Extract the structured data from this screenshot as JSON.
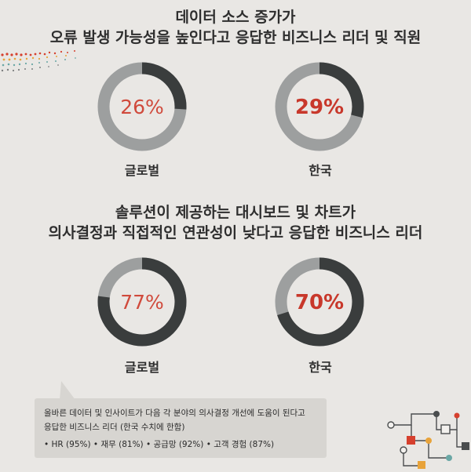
{
  "colors": {
    "ring_track": "#9d9f9f",
    "ring_value": "#3a3d3d",
    "pct_light": "#d04a3c",
    "pct_bold": "#c8382b",
    "background": "#e9e7e4"
  },
  "chart_data": [
    {
      "type": "pie",
      "title": [
        "데이터 소스 증가가",
        "오류 발생 가능성을 높인다고 응답한 비즈니스 리더 및 직원"
      ],
      "series": [
        {
          "name": "글로벌",
          "value": 26,
          "label": "26%"
        },
        {
          "name": "한국",
          "value": 29,
          "label": "29%"
        }
      ]
    },
    {
      "type": "pie",
      "title": [
        "솔루션이 제공하는 대시보드 및 차트가",
        "의사결정과 직접적인 연관성이 낮다고 응답한 비즈니스 리더"
      ],
      "series": [
        {
          "name": "글로벌",
          "value": 77,
          "label": "77%"
        },
        {
          "name": "한국",
          "value": 70,
          "label": "70%"
        }
      ]
    }
  ],
  "note": {
    "line1": "올바른 데이터 및 인사이트가 다음 각 분야의 의사결정 개선에 도움이 된다고",
    "line2": "응답한 비즈니스 리더 (한국 수치에 한함)",
    "line3": "• HR (95%) • 재무 (81%) • 공급망 (92%) • 고객 경험 (87%)"
  }
}
